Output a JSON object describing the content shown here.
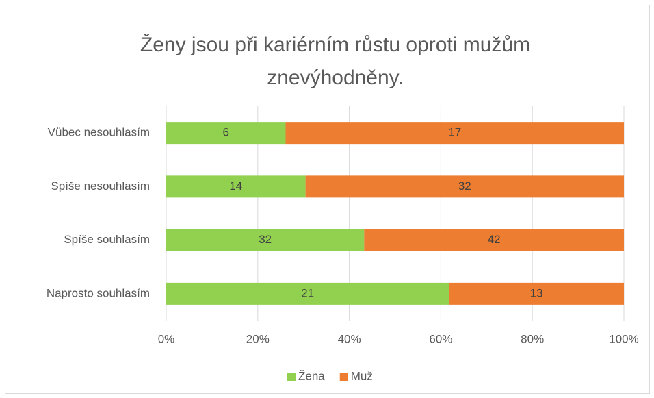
{
  "chart_data": {
    "type": "bar",
    "orientation": "horizontal",
    "stacking": "percent",
    "title": "Ženy jsou při kariérním růstu oproti mužům znevýhodněny.",
    "categories": [
      "Vůbec nesouhlasím",
      "Spíše nesouhlasím",
      "Spíše souhlasím",
      "Naprosto souhlasím"
    ],
    "series": [
      {
        "name": "Žena",
        "color": "#92d050",
        "values": [
          6,
          14,
          32,
          21
        ]
      },
      {
        "name": "Muž",
        "color": "#ed7d31",
        "values": [
          17,
          32,
          42,
          13
        ]
      }
    ],
    "xlim": [
      0,
      100
    ],
    "xticks": [
      {
        "value": 0,
        "label": "0%"
      },
      {
        "value": 20,
        "label": "20%"
      },
      {
        "value": 40,
        "label": "40%"
      },
      {
        "value": 60,
        "label": "60%"
      },
      {
        "value": 80,
        "label": "80%"
      },
      {
        "value": 100,
        "label": "100%"
      }
    ],
    "grid": true,
    "legend": "bottom"
  }
}
